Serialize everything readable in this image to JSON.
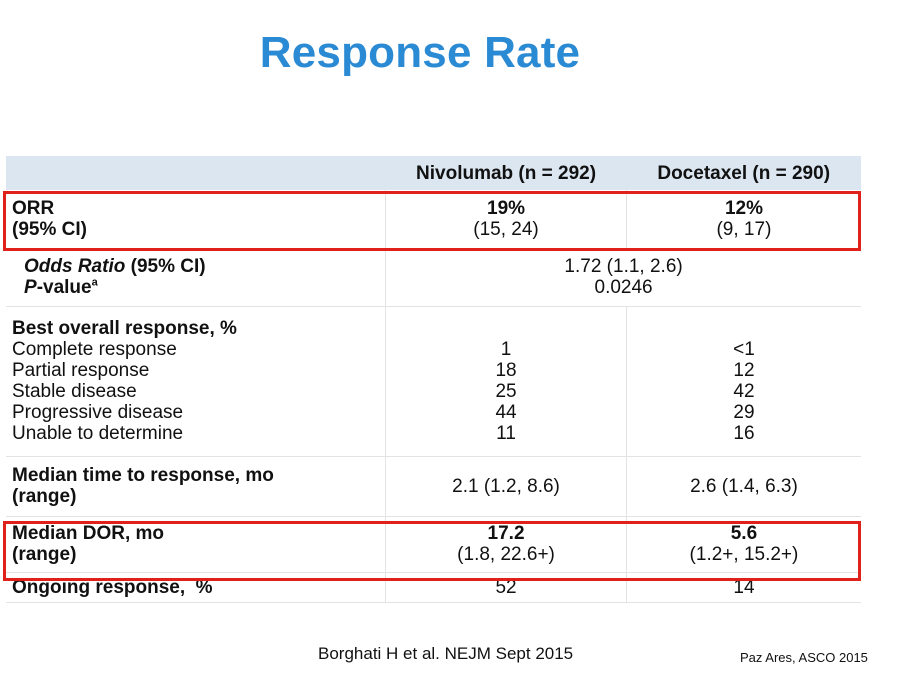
{
  "title": "Response Rate",
  "header": {
    "col2": "Nivolumab (n = 292)",
    "col3": "Docetaxel (n = 290)"
  },
  "orr": {
    "label1": "ORR",
    "label2": "(95% CI)",
    "nivo_value": "19%",
    "nivo_ci": "(15, 24)",
    "doce_value": "12%",
    "doce_ci": "(9, 17)"
  },
  "odds": {
    "label_italic": "Odds Ratio",
    "label_rest": " (95% CI)",
    "pval_p": "P",
    "pval_rest": "-value",
    "pval_sup": "a",
    "value1": "1.72 (1.1, 2.6)",
    "value2": "0.0246"
  },
  "best": {
    "heading": "Best overall response, %",
    "items": [
      {
        "label": "Complete response",
        "nivo": "1",
        "doce": "<1"
      },
      {
        "label": "Partial response",
        "nivo": "18",
        "doce": "12"
      },
      {
        "label": "Stable disease",
        "nivo": "25",
        "doce": "42"
      },
      {
        "label": "Progressive disease",
        "nivo": "44",
        "doce": "29"
      },
      {
        "label": "Unable to determine",
        "nivo": "11",
        "doce": "16"
      }
    ]
  },
  "mttr": {
    "label1": "Median time to response, mo",
    "label2": "(range)",
    "nivo": "2.1 (1.2, 8.6)",
    "doce": "2.6 (1.4, 6.3)"
  },
  "dor": {
    "label1": "Median DOR, mo",
    "label2": "(range)",
    "nivo_value": "17.2",
    "nivo_range": "(1.8, 22.6+)",
    "doce_value": "5.6",
    "doce_range": "(1.2+, 15.2+)"
  },
  "ongoing": {
    "label": "Ongoing response,  %",
    "nivo": "52",
    "doce": "14"
  },
  "footer": {
    "citation": "Borghati H et al. NEJM Sept 2015",
    "source": "Paz Ares, ASCO 2015"
  },
  "colors": {
    "title": "#2a8ad3",
    "header_bg": "#dbe6f1",
    "highlight": "#e0211b"
  }
}
